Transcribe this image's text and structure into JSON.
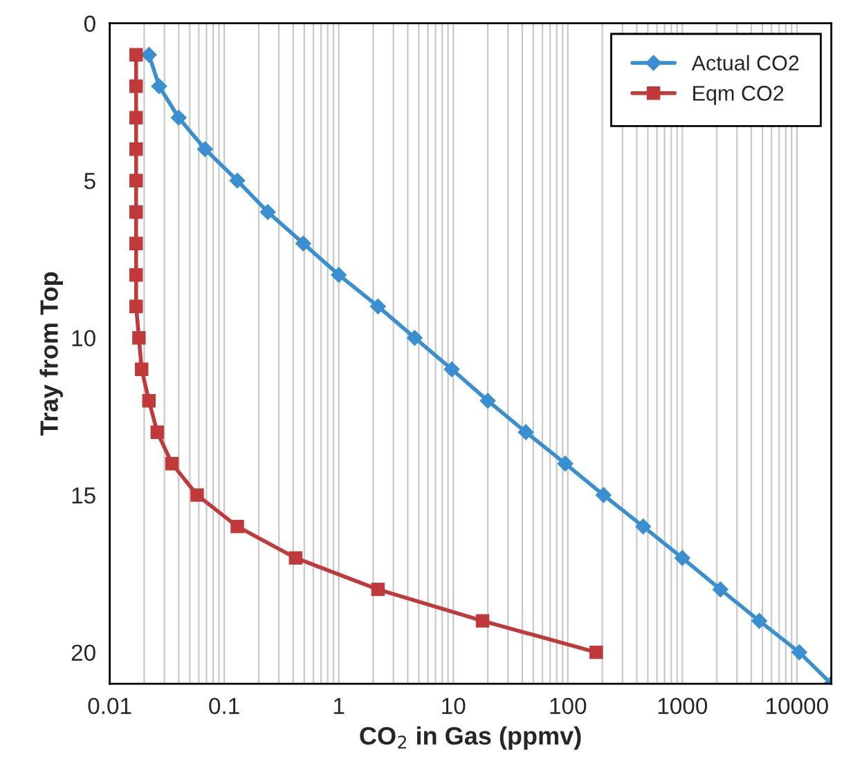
{
  "chart_data": {
    "type": "line",
    "xlabel": "CO$_{2}$ in Gas (ppmv)",
    "ylabel": "Tray from Top",
    "log": "x",
    "xlim": [
      0.01,
      20000
    ],
    "xticks": [
      0.01,
      0.1,
      1,
      10,
      100,
      1000,
      10000
    ],
    "ylim": [
      21,
      0
    ],
    "yticks": [
      0,
      5,
      10,
      15,
      20
    ],
    "grid": "x",
    "legend": "top right",
    "line_style": "solid",
    "series": [
      {
        "name": "Actual CO2",
        "color": "#3a8fd0",
        "marker": "diamond",
        "x": [
          0.022,
          0.027,
          0.04,
          0.068,
          0.13,
          0.24,
          0.49,
          1.0,
          2.2,
          4.6,
          9.7,
          20,
          43,
          95,
          205,
          455,
          1000,
          2150,
          4700,
          10500,
          20000
        ],
        "values": [
          1,
          2,
          3,
          4,
          5,
          6,
          7,
          8,
          9,
          10,
          11,
          12,
          13,
          14,
          15,
          16,
          17,
          18,
          19,
          20,
          21
        ]
      },
      {
        "name": "Eqm CO2",
        "color": "#c0393b",
        "marker": "square",
        "x": [
          0.017,
          0.017,
          0.017,
          0.017,
          0.017,
          0.017,
          0.017,
          0.017,
          0.017,
          0.018,
          0.019,
          0.022,
          0.026,
          0.035,
          0.058,
          0.13,
          0.42,
          2.2,
          18,
          177
        ],
        "values": [
          1,
          2,
          3,
          4,
          5,
          6,
          7,
          8,
          9,
          10,
          11,
          12,
          13,
          14,
          15,
          16,
          17,
          18,
          19,
          20
        ]
      }
    ]
  }
}
